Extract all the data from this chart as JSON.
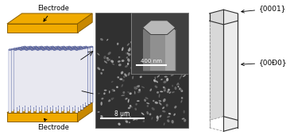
{
  "electrode_color": "#F0AA00",
  "electrode_darker": "#C88800",
  "electrode_edge_color": "#8B6000",
  "nanowire_color": "#C8CCDC",
  "nanowire_edge_color": "#4050A0",
  "nanowire_inner": "#E8E8F0",
  "background_color": "#ffffff",
  "label_electrode_top": "Electrode",
  "label_electrode_bottom": "Electrode",
  "label_0001": "{0001}",
  "label_001bar0": "{00Đ0}",
  "scale_400nm": "400 nm",
  "scale_8um": "8 um",
  "sem_bg": "#282828",
  "sem_mid": "#505050",
  "sem_light": "#909090",
  "hex_fill": "#D0D0D0",
  "hex_edge": "#404040"
}
